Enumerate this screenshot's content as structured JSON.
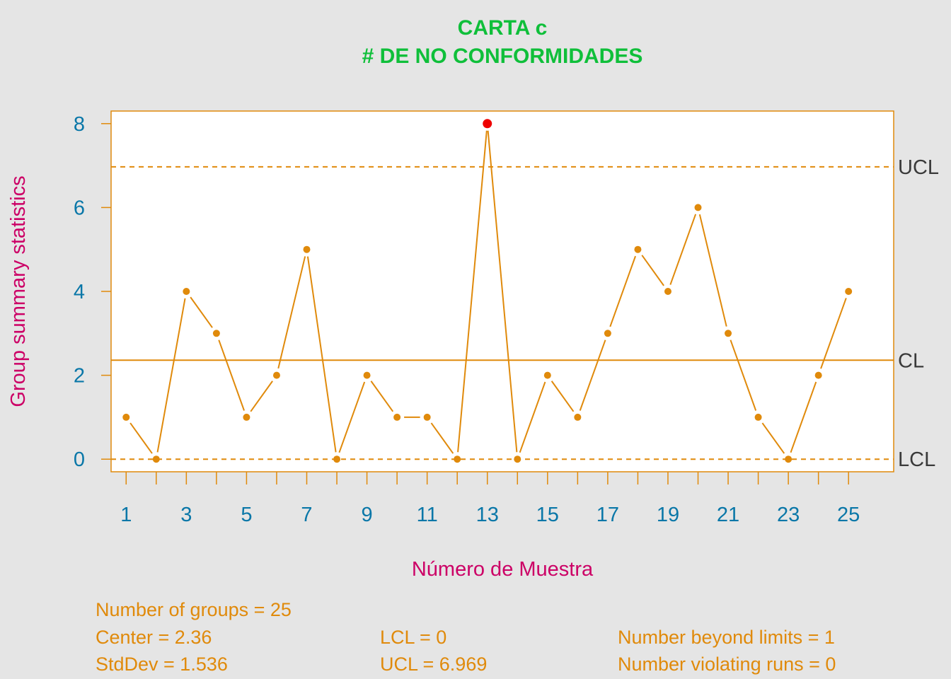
{
  "chart_data": {
    "type": "line",
    "title": "CARTA c",
    "subtitle": "# DE NO CONFORMIDADES",
    "xlabel": "Número de Muestra",
    "ylabel": "Group summary statistics",
    "x": [
      1,
      2,
      3,
      4,
      5,
      6,
      7,
      8,
      9,
      10,
      11,
      12,
      13,
      14,
      15,
      16,
      17,
      18,
      19,
      20,
      21,
      22,
      23,
      24,
      25
    ],
    "values": [
      1,
      0,
      4,
      3,
      1,
      2,
      5,
      0,
      2,
      1,
      1,
      0,
      8,
      0,
      2,
      1,
      3,
      5,
      4,
      6,
      3,
      1,
      0,
      2,
      4
    ],
    "xlim": [
      0.5,
      26.5
    ],
    "ylim": [
      -0.3,
      8.3
    ],
    "x_tick_labels": [
      "1",
      "3",
      "5",
      "7",
      "9",
      "11",
      "13",
      "15",
      "17",
      "19",
      "21",
      "23",
      "25"
    ],
    "x_tick_values": [
      1,
      3,
      5,
      7,
      9,
      11,
      13,
      15,
      17,
      19,
      21,
      23,
      25
    ],
    "y_ticks": [
      0,
      2,
      4,
      6,
      8
    ],
    "limits": {
      "center": 2.36,
      "ucl": 6.969,
      "lcl": 0,
      "center_label": "CL",
      "ucl_label": "UCL",
      "lcl_label": "LCL"
    },
    "beyond_limits_points": [
      13
    ],
    "grid": false,
    "colors": {
      "title": "#0fbf3a",
      "series": "#e08a0b",
      "violation": "#ee0000",
      "axis_labels": "#cc0066",
      "tick_labels": "#0a77a8",
      "limit_labels": "#3a3a3a",
      "background": "#e5e5e5",
      "plot_background": "#ffffff"
    }
  },
  "stats": {
    "groups": "Number of groups = 25",
    "center": "Center = 2.36",
    "stddev": "StdDev = 1.536",
    "lcl": "LCL = 0",
    "ucl": "UCL = 6.969",
    "beyond": "Number beyond limits = 1",
    "runs": "Number violating runs = 0"
  }
}
